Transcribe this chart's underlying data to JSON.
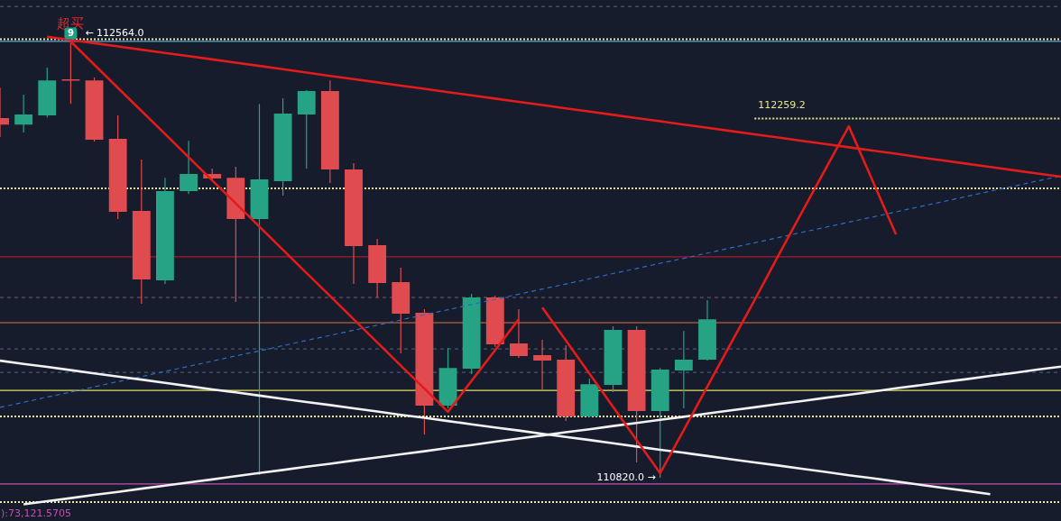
{
  "chart_data": {
    "type": "candlestick",
    "categories": [
      null,
      null,
      null,
      null,
      null,
      null,
      null,
      null,
      null,
      null,
      null,
      null,
      null,
      null,
      null,
      null,
      null,
      null,
      null,
      null,
      null,
      null,
      null,
      null,
      null,
      null,
      null,
      null,
      null,
      null,
      null,
      null,
      null,
      null,
      null,
      null,
      null,
      null,
      null,
      null,
      null,
      null,
      null,
      null,
      null,
      null
    ],
    "ohlc": [
      [
        112261,
        112383,
        112185,
        112235
      ],
      [
        112235,
        112355,
        112203,
        112275
      ],
      [
        112272,
        112463,
        112264,
        112412
      ],
      [
        112416,
        112564.0,
        112318,
        112412
      ],
      [
        112412,
        112423,
        112167,
        112174
      ],
      [
        112178,
        112272,
        111856,
        111885
      ],
      [
        111889,
        112095,
        111517,
        111614
      ],
      [
        111611,
        112022,
        111596,
        111968
      ],
      [
        111968,
        112170,
        111957,
        112037
      ],
      [
        112037,
        112059,
        112008,
        112019
      ],
      [
        112022,
        112066,
        111524,
        111856
      ],
      [
        111856,
        112318,
        110831,
        112015
      ],
      [
        112008,
        112340,
        111950,
        112279
      ],
      [
        112275,
        112373,
        112059,
        112369
      ],
      [
        112369,
        112412,
        112001,
        112055
      ],
      [
        112055,
        112080,
        111596,
        111748
      ],
      [
        111752,
        111777,
        111542,
        111600
      ],
      [
        111604,
        111661,
        111318,
        111477
      ],
      [
        111481,
        111495,
        110993,
        111109
      ],
      [
        111109,
        111340,
        111098,
        111260
      ],
      [
        111257,
        111557,
        111235,
        111542
      ],
      [
        111542,
        111549,
        111344,
        111354
      ],
      [
        111358,
        111495,
        111300,
        111307
      ],
      [
        111311,
        111372,
        111174,
        111289
      ],
      [
        111293,
        111351,
        111047,
        111065
      ],
      [
        111065,
        111217,
        111062,
        111195
      ],
      [
        111192,
        111427,
        111163,
        111412
      ],
      [
        111412,
        111427,
        110881,
        111087
      ],
      [
        111087,
        111260,
        110820.0,
        111253
      ],
      [
        111250,
        111408,
        111098,
        111293
      ],
      [
        111293,
        111531,
        111289,
        111455
      ],
      null,
      null,
      null,
      null,
      null,
      null,
      null,
      null,
      null,
      null,
      null,
      null,
      null,
      null,
      null
    ],
    "colors": [
      "#e04b4f",
      "#26a285",
      "#26a285",
      "#e04b4f",
      "#e04b4f",
      "#e04b4f",
      "#e04b4f",
      "#26a285",
      "#26a285",
      "#e04b4f",
      "#e04b4f",
      "#26a285",
      "#26a285",
      "#26a285",
      "#e04b4f",
      "#e04b4f",
      "#e04b4f",
      "#e04b4f",
      "#e04b4f",
      "#26a285",
      "#26a285",
      "#e04b4f",
      "#e04b4f",
      "#e04b4f",
      "#e04b4f",
      "#26a285",
      "#26a285",
      "#e04b4f",
      "#26a285",
      "#26a285",
      "#26a285",
      null,
      null,
      null,
      null,
      null,
      null,
      null,
      null,
      null,
      null,
      null,
      null,
      null,
      null,
      null
    ],
    "series": [
      {
        "type": "line",
        "color": "#e31b1b",
        "line_style": "solid",
        "values": [
          null,
          null,
          112587,
          112574,
          112561,
          112548,
          112535,
          112522,
          112509,
          112496,
          112483,
          112470,
          112457,
          112443,
          112430,
          112417,
          112404,
          112391,
          112378,
          112365,
          112352,
          112339,
          112326,
          112313,
          112300,
          112287,
          112274,
          112261,
          112248,
          112235,
          112222,
          112209,
          112196,
          112183,
          112170,
          112157,
          112144,
          112131,
          112118,
          112104,
          112091,
          112078,
          112065,
          112052,
          112039,
          112026
        ]
      },
      {
        "type": "line",
        "color": "#e31b1b",
        "line_style": "solid",
        "values": [
          null,
          null,
          null,
          112568,
          112475,
          112382,
          112290,
          112197,
          112104,
          112011,
          111919,
          111826,
          111733,
          111640,
          111548,
          111455,
          111362,
          111269,
          111177,
          111084,
          111208,
          111331,
          111455,
          null,
          null,
          null,
          null,
          null,
          null,
          null,
          null,
          null,
          null,
          null,
          null,
          null,
          null,
          null,
          null,
          null,
          null,
          null,
          null,
          null,
          null,
          null
        ]
      },
      {
        "type": "line",
        "color": "#e31b1b",
        "line_style": "solid",
        "values": [
          null,
          null,
          null,
          null,
          null,
          null,
          null,
          null,
          null,
          null,
          null,
          null,
          null,
          null,
          null,
          null,
          null,
          null,
          null,
          null,
          null,
          null,
          null,
          111502,
          111370,
          111237,
          111104,
          110971,
          110838,
          111011,
          111185,
          111358,
          111531,
          111708,
          111882,
          112055,
          112228,
          112012,
          111795,
          null,
          null,
          null,
          null,
          null,
          null,
          null
        ]
      },
      {
        "type": "line",
        "color": "#f2f2f2",
        "line_style": "solid",
        "values": [
          111289,
          111276,
          111264,
          111251,
          111238,
          111225,
          111213,
          111200,
          111187,
          111174,
          111162,
          111149,
          111136,
          111123,
          111111,
          111098,
          111085,
          111072,
          111060,
          111047,
          111034,
          111021,
          111009,
          110996,
          110983,
          110971,
          110958,
          110945,
          110932,
          110920,
          110907,
          110894,
          110881,
          110869,
          110856,
          110843,
          110830,
          110818,
          110805,
          110792,
          110779,
          110767,
          110754,
          null,
          null,
          null
        ]
      },
      {
        "type": "line",
        "color": "#f2f2f2",
        "line_style": "solid",
        "values": [
          null,
          110713,
          110726,
          110738,
          110751,
          110763,
          110776,
          110788,
          110801,
          110813,
          110826,
          110839,
          110851,
          110864,
          110876,
          110889,
          110901,
          110914,
          110926,
          110939,
          110951,
          110964,
          110977,
          110989,
          111002,
          111014,
          111027,
          111039,
          111052,
          111064,
          111077,
          111090,
          111102,
          111115,
          111127,
          111140,
          111152,
          111165,
          111178,
          111190,
          111203,
          111215,
          111228,
          111240,
          111253,
          111265
        ]
      },
      {
        "type": "line",
        "color": "#2f6cc4",
        "line_style": "dashed",
        "values": [
          111102,
          111122,
          111143,
          111163,
          111184,
          111205,
          111225,
          111246,
          111266,
          111287,
          111308,
          111328,
          111349,
          111370,
          111390,
          111411,
          111431,
          111452,
          111473,
          111493,
          111514,
          111535,
          111555,
          111576,
          111596,
          111617,
          111638,
          111658,
          111679,
          111699,
          111720,
          111741,
          111761,
          111782,
          111803,
          111823,
          111844,
          111864,
          111885,
          111906,
          111926,
          111947,
          111968,
          111988,
          112009,
          112029
        ]
      },
      {
        "type": "line",
        "name": "112259.2",
        "color": "#e9e58f",
        "line_style": "dotted",
        "values": [
          null,
          null,
          null,
          null,
          null,
          null,
          null,
          null,
          null,
          null,
          null,
          null,
          null,
          null,
          null,
          null,
          null,
          null,
          null,
          null,
          null,
          null,
          null,
          null,
          null,
          null,
          null,
          null,
          null,
          null,
          null,
          null,
          112259.2,
          112259.2,
          112259.2,
          112259.2,
          112259.2,
          112259.2,
          112259.2,
          112259.2,
          112259.2,
          112259.2,
          112259.2,
          112259.2,
          112259.2,
          112259.2
        ]
      }
    ],
    "ref_lines": [
      {
        "axis": "y",
        "value": 112708,
        "color": "#59627a",
        "line_style": "dashed"
      },
      {
        "axis": "y",
        "value": 112577,
        "color": "#efe9a0",
        "line_style": "dotted"
      },
      {
        "axis": "y",
        "value": 112568,
        "color": "#5fa8d8",
        "line_style": "solid"
      },
      {
        "axis": "y",
        "value": 111979,
        "color": "#efe9a0",
        "line_style": "dotted"
      },
      {
        "axis": "y",
        "value": 111705,
        "color": "#a8182c",
        "line_style": "solid"
      },
      {
        "axis": "y",
        "value": 111542,
        "color": "#7d5a6e",
        "line_style": "dashed"
      },
      {
        "axis": "y",
        "value": 111441,
        "color": "#e0733e",
        "line_style": "solid"
      },
      {
        "axis": "y",
        "value": 111336,
        "color": "#4f6584",
        "line_style": "dashed"
      },
      {
        "axis": "y",
        "value": 111242,
        "color": "#4f6584",
        "line_style": "dashed"
      },
      {
        "axis": "y",
        "value": 111170,
        "color": "#e6df6a",
        "line_style": "solid"
      },
      {
        "axis": "y",
        "value": 111065,
        "color": "#efe9a0",
        "line_style": "dotted"
      },
      {
        "axis": "y",
        "value": 110795,
        "color": "#c24fb0",
        "line_style": "solid"
      },
      {
        "axis": "y",
        "value": 110722,
        "color": "#efe9a0",
        "line_style": "dotted"
      }
    ],
    "annotations": [
      "超买",
      "9",
      {
        "text": "← 112564.0",
        "y": 112564.0
      },
      "110820.0 →",
      "):73,121.5705"
    ],
    "tick_labels": false
  }
}
